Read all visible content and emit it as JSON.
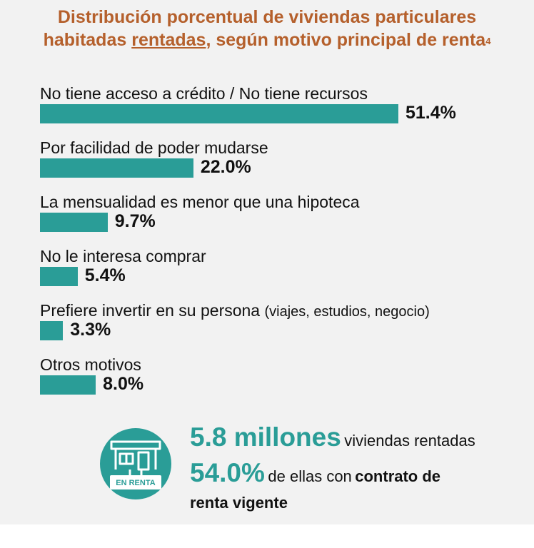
{
  "title": {
    "line1": "Distribución porcentual de viviendas particulares",
    "line2_pre": "habitadas ",
    "line2_underlined": "rentadas",
    "line2_post": ", según motivo principal de renta",
    "footnote": "4"
  },
  "chart_data": {
    "type": "bar",
    "orientation": "horizontal",
    "categories": [
      "No tiene acceso a crédito / No tiene recursos",
      "Por facilidad de poder mudarse",
      "La mensualidad es menor que una hipoteca",
      "No le interesa comprar",
      "Prefiere invertir en su persona",
      "Otros motivos"
    ],
    "category_notes": [
      "",
      "",
      "",
      "",
      "(viajes, estudios, negocio)",
      ""
    ],
    "values": [
      51.4,
      22.0,
      9.7,
      5.4,
      3.3,
      8.0
    ],
    "value_labels": [
      "51.4%",
      "22.0%",
      "9.7%",
      "5.4%",
      "3.3%",
      "8.0%"
    ],
    "bar_color": "#2a9d97",
    "title_color": "#b5602c",
    "legend": "none",
    "grid": false
  },
  "summary": {
    "houses": "5.8 millones",
    "houses_text": "viviendas rentadas",
    "pct": "54.0%",
    "pct_text": "de ellas con",
    "bold1": "contrato de",
    "bold2": "renta vigente"
  },
  "icon": {
    "name": "house-for-rent-icon",
    "sign_text": "EN RENTA"
  }
}
